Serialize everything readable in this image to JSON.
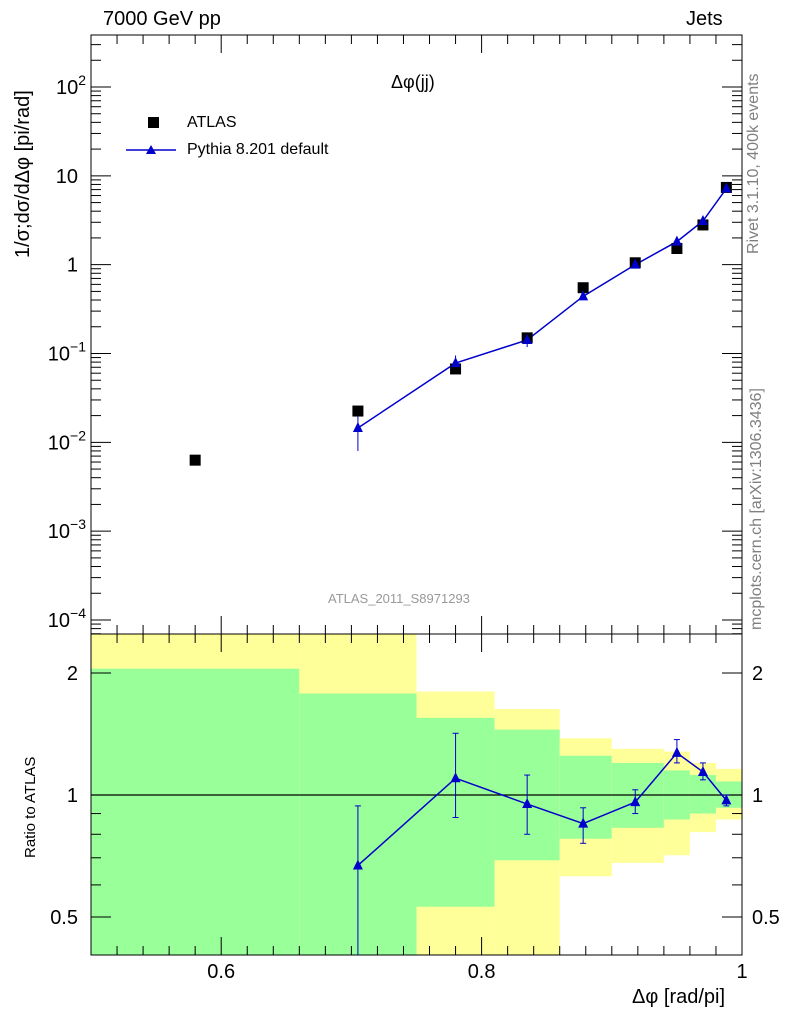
{
  "header": {
    "left": "7000 GeV pp",
    "right": "Jets"
  },
  "side_labels": {
    "top": "Rivet 3.1.10,  400k events",
    "bottom": "mcplots.cern.ch [arXiv:1306.3436]"
  },
  "colors": {
    "data": "#000000",
    "mc": "#0000cc",
    "band_inner": "#99ff99",
    "band_outer": "#ffff99"
  },
  "chart_data": [
    {
      "type": "scatter",
      "title": "Δφ(jj)",
      "analysis_label": "ATLAS_2011_S8971293",
      "ylabel": "1/σ;dσ/dΔφ [pi/rad]",
      "xlim": [
        0.5,
        1.0
      ],
      "ylim": [
        0.0001,
        300
      ],
      "yscale": "log",
      "x_ticks": [
        0.6,
        0.8,
        1.0
      ],
      "y_ticks": [
        "10^-4",
        "10^-3",
        "10^-2",
        "10^-1",
        "1",
        "10",
        "10^2"
      ],
      "legend_position": "top-left",
      "series": [
        {
          "name": "ATLAS",
          "style": "square-markers",
          "x": [
            0.58,
            0.705,
            0.78,
            0.835,
            0.878,
            0.918,
            0.95,
            0.97,
            0.988
          ],
          "y": [
            0.0063,
            0.0225,
            0.067,
            0.15,
            0.55,
            1.05,
            1.52,
            2.8,
            7.4
          ]
        },
        {
          "name": "Pythia 8.201 default",
          "style": "triangle-line",
          "x": [
            0.705,
            0.78,
            0.835,
            0.878,
            0.918,
            0.95,
            0.97,
            0.988
          ],
          "y": [
            0.0145,
            0.078,
            0.142,
            0.44,
            1.0,
            1.82,
            3.1,
            7.2
          ],
          "y_err_low": [
            0.008,
            0.063,
            0.118,
            0.4,
            0.95,
            1.72,
            2.95,
            6.9
          ],
          "y_err_high": [
            0.0195,
            0.095,
            0.168,
            0.48,
            1.06,
            1.95,
            3.3,
            7.5
          ]
        }
      ]
    },
    {
      "type": "line",
      "ylabel": "Ratio to ATLAS",
      "xlabel": "Δφ [rad/pi]",
      "xlim": [
        0.5,
        1.0
      ],
      "ylim": [
        0.35,
        2.3
      ],
      "yscale": "log",
      "x_ticks": [
        "0.6",
        "0.8",
        "1"
      ],
      "y_ticks": [
        "0.5",
        "1",
        "2"
      ],
      "reference_line": 1,
      "bands": [
        {
          "x0": 0.5,
          "x1": 0.66,
          "inner": [
            0.33,
            2.05
          ],
          "outer": [
            0.33,
            2.5
          ]
        },
        {
          "x0": 0.66,
          "x1": 0.75,
          "inner": [
            0.33,
            1.78
          ],
          "outer": [
            0.33,
            2.5
          ]
        },
        {
          "x0": 0.75,
          "x1": 0.81,
          "inner": [
            0.53,
            1.55
          ],
          "outer": [
            0.33,
            1.8
          ]
        },
        {
          "x0": 0.81,
          "x1": 0.86,
          "inner": [
            0.69,
            1.45
          ],
          "outer": [
            0.33,
            1.63
          ]
        },
        {
          "x0": 0.86,
          "x1": 0.9,
          "inner": [
            0.78,
            1.25
          ],
          "outer": [
            0.63,
            1.38
          ]
        },
        {
          "x0": 0.9,
          "x1": 0.94,
          "inner": [
            0.83,
            1.2
          ],
          "outer": [
            0.68,
            1.3
          ]
        },
        {
          "x0": 0.94,
          "x1": 0.96,
          "inner": [
            0.87,
            1.15
          ],
          "outer": [
            0.71,
            1.28
          ]
        },
        {
          "x0": 0.96,
          "x1": 0.98,
          "inner": [
            0.9,
            1.12
          ],
          "outer": [
            0.81,
            1.2
          ]
        },
        {
          "x0": 0.98,
          "x1": 1.0,
          "inner": [
            0.93,
            1.08
          ],
          "outer": [
            0.87,
            1.16
          ]
        }
      ],
      "series": [
        {
          "name": "Pythia 8.201 default",
          "x": [
            0.705,
            0.78,
            0.835,
            0.878,
            0.918,
            0.95,
            0.97,
            0.988
          ],
          "y": [
            0.67,
            1.1,
            0.95,
            0.85,
            0.96,
            1.27,
            1.14,
            0.97
          ],
          "y_err_low": [
            0.34,
            0.88,
            0.8,
            0.76,
            0.9,
            1.2,
            1.09,
            0.94
          ],
          "y_err_high": [
            0.94,
            1.42,
            1.12,
            0.93,
            1.03,
            1.37,
            1.2,
            1.0
          ]
        }
      ]
    }
  ]
}
